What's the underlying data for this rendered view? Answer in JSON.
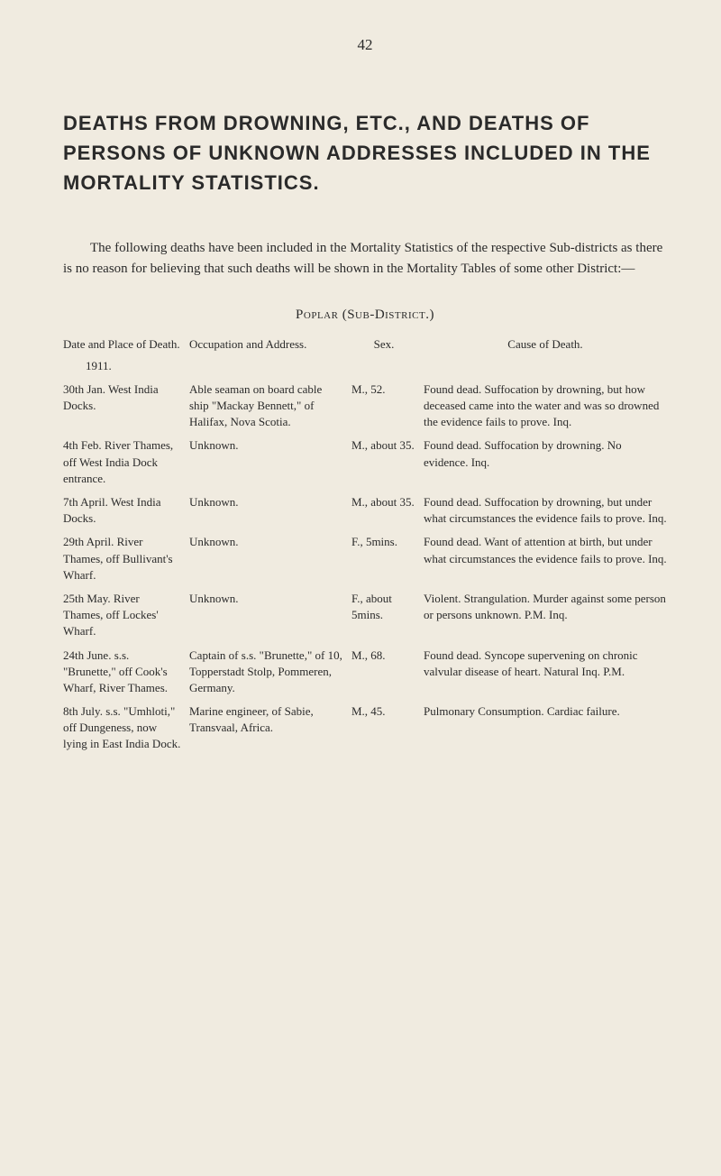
{
  "page_number": "42",
  "title": "DEATHS FROM DROWNING, ETC., AND DEATHS OF PERSONS OF UNKNOWN ADDRESSES INCLUDED IN THE MORTALITY STATISTICS.",
  "intro": "The following deaths have been included in the Mortality Statistics of the respective Sub-districts as there is no reason for believing that such deaths will be shown in the Mortality Tables of some other District:—",
  "subheading": "Poplar (Sub-District.)",
  "headers": {
    "col1": "Date and Place of Death.",
    "col2": "Occupation and Address.",
    "col3": "Sex.",
    "col4": "Cause of Death."
  },
  "year": "1911.",
  "rows": [
    {
      "date_place": "30th Jan. West India Docks.",
      "occupation": "Able seaman on board cable ship \"Mackay Bennett,\" of Halifax, Nova Scotia.",
      "sex": "M., 52.",
      "cause": "Found dead. Suffocation by drowning, but how deceased came into the water and was so drowned the evidence fails to prove. Inq."
    },
    {
      "date_place": "4th Feb. River Thames, off West India Dock entrance.",
      "occupation": "Unknown.",
      "sex": "M., about 35.",
      "cause": "Found dead. Suffocation by drowning. No evidence. Inq."
    },
    {
      "date_place": "7th April. West India Docks.",
      "occupation": "Unknown.",
      "sex": "M., about 35.",
      "cause": "Found dead. Suffocation by drowning, but under what circumstances the evidence fails to prove. Inq."
    },
    {
      "date_place": "29th April. River Thames, off Bullivant's Wharf.",
      "occupation": "Unknown.",
      "sex": "F., 5mins.",
      "cause": "Found dead. Want of attention at birth, but under what circumstances the evidence fails to prove. Inq."
    },
    {
      "date_place": "25th May. River Thames, off Lockes' Wharf.",
      "occupation": "Unknown.",
      "sex": "F., about 5mins.",
      "cause": "Violent. Strangulation. Murder against some person or persons unknown. P.M. Inq."
    },
    {
      "date_place": "24th June. s.s. \"Brunette,\" off Cook's Wharf, River Thames.",
      "occupation": "Captain of s.s. \"Brunette,\" of 10, Topperstadt Stolp, Pommeren, Germany.",
      "sex": "M., 68.",
      "cause": "Found dead. Syncope supervening on chronic valvular disease of heart. Natural Inq. P.M."
    },
    {
      "date_place": "8th July. s.s. \"Umhloti,\" off Dungeness, now lying in East India Dock.",
      "occupation": "Marine engineer, of Sabie, Transvaal, Africa.",
      "sex": "M., 45.",
      "cause": "Pulmonary Consumption. Cardiac failure."
    }
  ]
}
